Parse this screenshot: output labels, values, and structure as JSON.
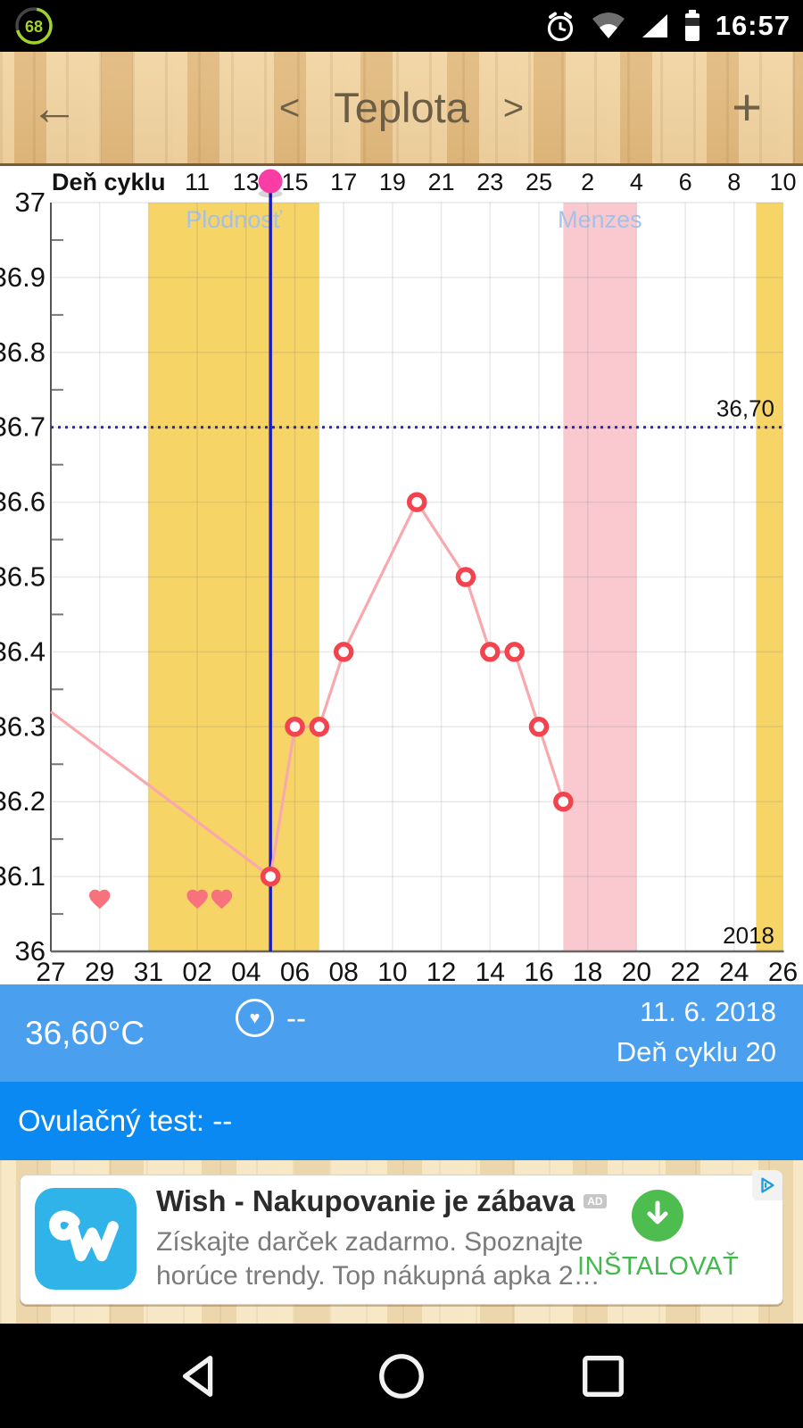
{
  "status": {
    "battery_percent": "68",
    "time": "16:57"
  },
  "header": {
    "back": "←",
    "prev": "<",
    "title": "Teplota",
    "next": ">",
    "add": "+"
  },
  "chart_data": {
    "type": "line",
    "top_axis_title": "Deň cyklu",
    "top_axis": [
      {
        "label": "11",
        "day": 6
      },
      {
        "label": "13",
        "day": 8
      },
      {
        "label": "15",
        "day": 10
      },
      {
        "label": "17",
        "day": 12
      },
      {
        "label": "19",
        "day": 14
      },
      {
        "label": "21",
        "day": 16
      },
      {
        "label": "23",
        "day": 18
      },
      {
        "label": "25",
        "day": 20
      },
      {
        "label": "2",
        "day": 22
      },
      {
        "label": "4",
        "day": 24
      },
      {
        "label": "6",
        "day": 26
      },
      {
        "label": "8",
        "day": 28
      },
      {
        "label": "10",
        "day": 30
      }
    ],
    "bottom_axis": [
      {
        "label": "27",
        "day": 0
      },
      {
        "label": "29",
        "day": 2
      },
      {
        "label": "31",
        "day": 4
      },
      {
        "label": "02",
        "day": 6
      },
      {
        "label": "04",
        "day": 8
      },
      {
        "label": "06",
        "day": 10
      },
      {
        "label": "08",
        "day": 12
      },
      {
        "label": "10",
        "day": 14
      },
      {
        "label": "12",
        "day": 16
      },
      {
        "label": "14",
        "day": 18
      },
      {
        "label": "16",
        "day": 20
      },
      {
        "label": "18",
        "day": 22
      },
      {
        "label": "20",
        "day": 24
      },
      {
        "label": "22",
        "day": 26
      },
      {
        "label": "24",
        "day": 28
      },
      {
        "label": "26",
        "day": 30
      }
    ],
    "y_ticks": [
      {
        "label": "37",
        "temp": 37
      },
      {
        "label": "36.9",
        "temp": 36.9
      },
      {
        "label": "36.8",
        "temp": 36.8
      },
      {
        "label": "36.7",
        "temp": 36.7
      },
      {
        "label": "36.6",
        "temp": 36.6
      },
      {
        "label": "36.5",
        "temp": 36.5
      },
      {
        "label": "36.4",
        "temp": 36.4
      },
      {
        "label": "36.3",
        "temp": 36.3
      },
      {
        "label": "36.2",
        "temp": 36.2
      },
      {
        "label": "36.1",
        "temp": 36.1
      },
      {
        "label": "36",
        "temp": 36
      }
    ],
    "y_min": 36,
    "y_max": 37,
    "days_span": 30,
    "grid_step_days": 2,
    "series": [
      {
        "name": "teplota",
        "points": [
          {
            "day": 9,
            "temp": 36.1
          },
          {
            "day": 10,
            "temp": 36.3
          },
          {
            "day": 11,
            "temp": 36.3
          },
          {
            "day": 12,
            "temp": 36.4
          },
          {
            "day": 15,
            "temp": 36.6
          },
          {
            "day": 17,
            "temp": 36.5
          },
          {
            "day": 18,
            "temp": 36.4
          },
          {
            "day": 19,
            "temp": 36.4
          },
          {
            "day": 20,
            "temp": 36.3
          },
          {
            "day": 21,
            "temp": 36.2
          }
        ]
      }
    ],
    "line_lead_in": {
      "day": 0,
      "temp": 36.32
    },
    "coverline": {
      "temp": 36.7,
      "label": "36,70"
    },
    "cursor_day": 9,
    "ovulation_marker_day": 9,
    "bands": [
      {
        "kind": "fertile",
        "label": "Plodnosť",
        "from_day": 4,
        "to_day": 11
      },
      {
        "kind": "menses",
        "label": "Menzes",
        "from_day": 21,
        "to_day": 24
      },
      {
        "kind": "fertile",
        "label": "",
        "from_day": 28.9,
        "to_day": 30
      }
    ],
    "hearts": {
      "days": [
        2,
        6,
        7
      ],
      "temp": 36.07
    },
    "year_label": "2018",
    "colors": {
      "fertile_band": "#f6d466",
      "menses_band": "#f9c9cf",
      "line": "#f9a8ae",
      "point_stroke": "#f2444e",
      "point_fill": "#ffffff",
      "cursor": "#1c1cc4",
      "coverline": "#2424cc",
      "heart": "#f7727c",
      "band_label": "#a5c1e8",
      "ovulation_dot": "#fa3da5",
      "axis_text": "#121212",
      "grid": "rgba(110,110,110,0.15)"
    }
  },
  "info_panel": {
    "temperature": "36,60°C",
    "heart_value": "--",
    "date": "11. 6. 2018",
    "cycle_day": "Deň cyklu 20",
    "ovulation_test": "Ovulačný test: --"
  },
  "ad": {
    "title": "Wish - Nakupovanie je zábava",
    "badge": "AD",
    "line1": "Získajte darček zadarmo. Spoznajte",
    "line2": "horúce trendy. Top nákupná apka 2…",
    "cta": "INŠTALOVAŤ"
  }
}
